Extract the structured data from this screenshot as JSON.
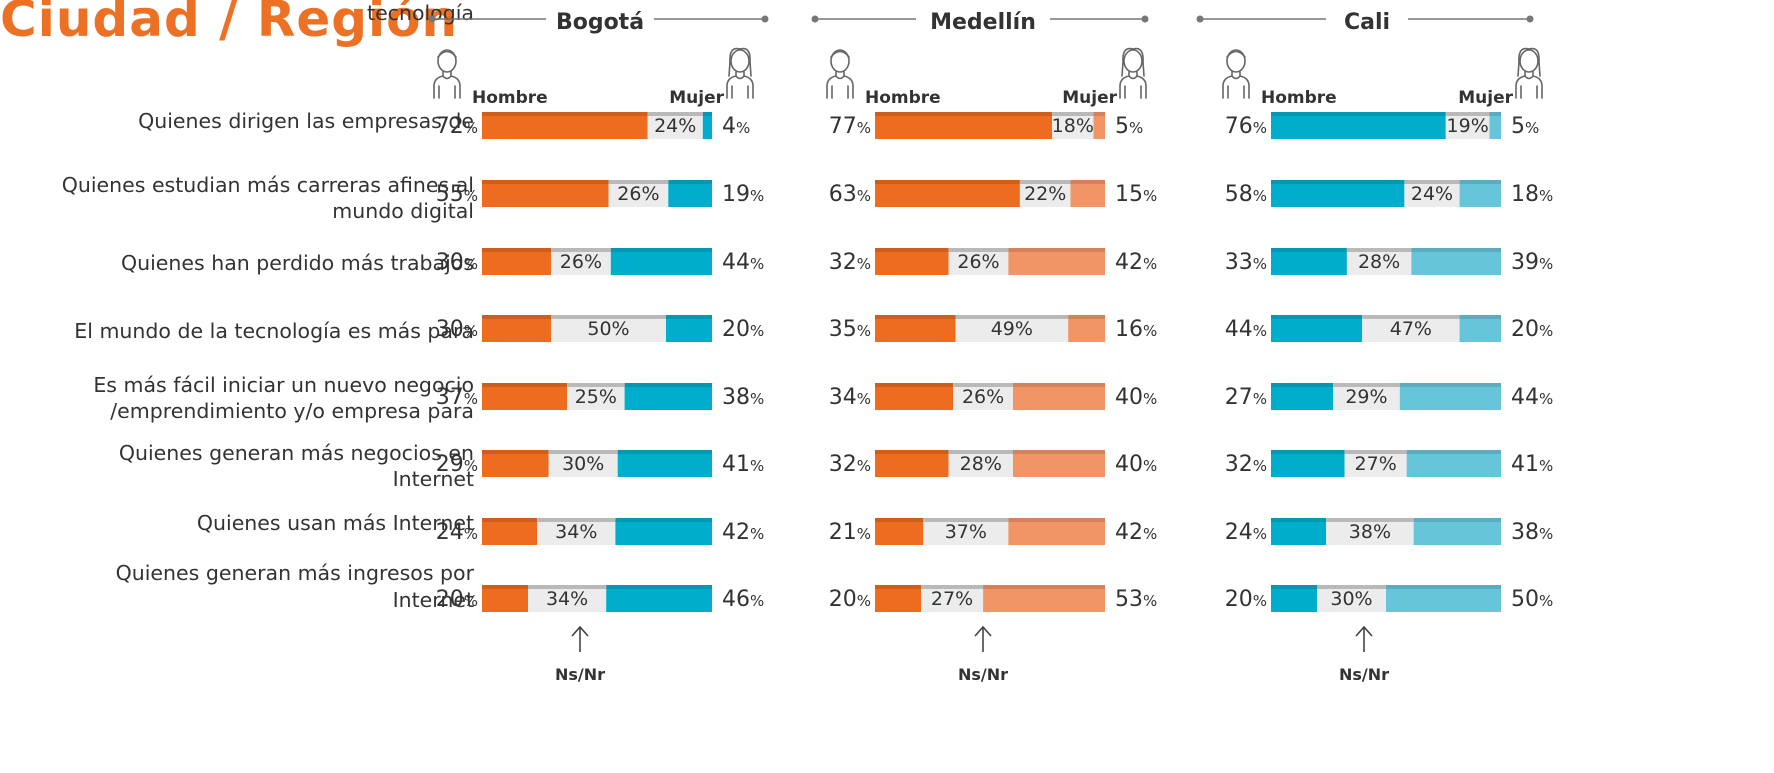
{
  "title": "Ciudad / Región",
  "hombre_label": "Hombre",
  "mujer_label": "Mujer",
  "nsnr_label": "Ns/Nr",
  "colors": {
    "accent": "#ed7125",
    "bogota_hombre": "#ed6c1f",
    "bogota_mujer": "#00aecb",
    "medellin_hombre": "#ed6c1f",
    "medellin_mujer": "#f19566",
    "cali_hombre": "#00aecb",
    "cali_mujer": "#67c5da",
    "nsnr": "#ececec"
  },
  "questions": [
    "Quienes dirigen las empresas de\ntecnología",
    "Quienes estudian más carreras afines al\nmundo digital",
    "Quienes han perdido más trabajos",
    "El mundo de la tecnología es más para",
    "Es más fácil iniciar un nuevo negocio\n/emprendimiento y/o empresa para",
    "Quienes generan más negocios en\nInternet",
    "Quienes usan más Internet",
    "Quienes generan más ingresos por\nInternet"
  ],
  "chart_data": [
    {
      "type": "bar",
      "title": "Bogotá",
      "series": [
        {
          "name": "Hombre",
          "values": [
            72,
            55,
            30,
            30,
            37,
            29,
            24,
            20
          ]
        },
        {
          "name": "Ns/Nr",
          "values": [
            24,
            26,
            26,
            50,
            25,
            30,
            34,
            34
          ]
        },
        {
          "name": "Mujer",
          "values": [
            4,
            19,
            44,
            20,
            38,
            41,
            42,
            46
          ]
        }
      ]
    },
    {
      "type": "bar",
      "title": "Medellín",
      "series": [
        {
          "name": "Hombre",
          "values": [
            77,
            63,
            32,
            35,
            34,
            32,
            21,
            20
          ]
        },
        {
          "name": "Ns/Nr",
          "values": [
            18,
            22,
            26,
            49,
            26,
            28,
            37,
            27
          ]
        },
        {
          "name": "Mujer",
          "values": [
            5,
            15,
            42,
            16,
            40,
            40,
            42,
            53
          ]
        }
      ]
    },
    {
      "type": "bar",
      "title": "Cali",
      "series": [
        {
          "name": "Hombre",
          "values": [
            76,
            58,
            33,
            44,
            27,
            32,
            24,
            20
          ]
        },
        {
          "name": "Ns/Nr",
          "values": [
            19,
            24,
            28,
            47,
            29,
            27,
            38,
            30
          ]
        },
        {
          "name": "Mujer",
          "values": [
            5,
            18,
            39,
            20,
            44,
            41,
            38,
            50
          ]
        }
      ]
    }
  ]
}
